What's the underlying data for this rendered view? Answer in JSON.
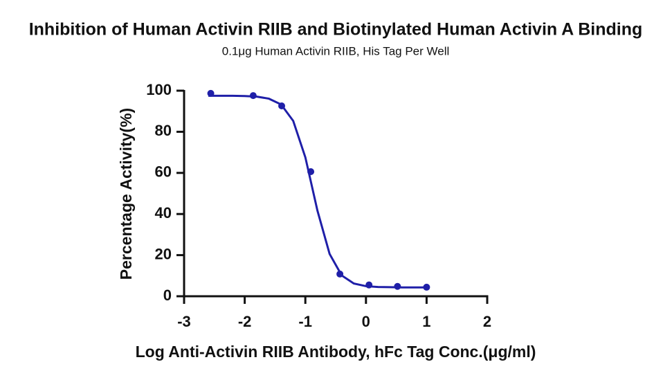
{
  "chart_data": {
    "type": "scatter",
    "title": "Inhibition of Human Activin RIIB and Biotinylated Human Activin A Binding",
    "subtitle": "0.1μg Human Activin RIIB, His Tag Per Well",
    "x_label": "Log Anti-Activin RIIB Antibody, hFc Tag Conc.(μg/ml)",
    "y_label": "Percentage Activity(%)",
    "xlim": [
      -3,
      2
    ],
    "xticks": [
      -3,
      -2,
      -1,
      0,
      1,
      2
    ],
    "ylim": [
      0,
      100
    ],
    "yticks": [
      0,
      20,
      40,
      60,
      80,
      100
    ],
    "series": [
      {
        "mode": "markers",
        "color": "#1f1fa8",
        "x": [
          -2.56,
          -1.86,
          -1.39,
          -0.91,
          -0.43,
          0.05,
          0.52,
          1
        ],
        "values": [
          98.7,
          97.6,
          92.6,
          60.6,
          10.8,
          5.5,
          4.8,
          4.4
        ]
      },
      {
        "mode": "line",
        "color": "#1f1fa8",
        "x": [
          -2.6,
          -2.4,
          -2.2,
          -2.0,
          -1.8,
          -1.6,
          -1.4,
          -1.2,
          -1.0,
          -0.8,
          -0.6,
          -0.4,
          -0.2,
          0,
          0.2,
          0.4,
          0.6,
          0.8,
          1.0
        ],
        "values": [
          97.5,
          97.5,
          97.5,
          97.4,
          97.1,
          96.1,
          93.3,
          85.3,
          67.6,
          41.6,
          20.6,
          10.1,
          6.2,
          4.9,
          4.5,
          4.4,
          4.3,
          4.3,
          4.3
        ]
      }
    ]
  }
}
